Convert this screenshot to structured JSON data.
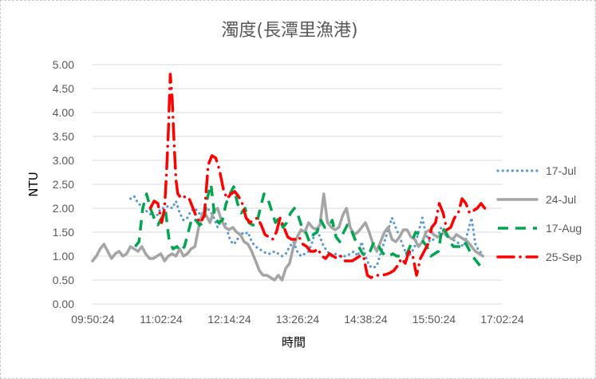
{
  "chart_data": {
    "type": "line",
    "title": "濁度(長潭里漁港)",
    "xlabel": "時間",
    "ylabel": "NTU",
    "xlim_minutes": [
      590,
      1022
    ],
    "ylim": [
      0,
      5
    ],
    "y_ticks": [
      0,
      0.5,
      1,
      1.5,
      2,
      2.5,
      3,
      3.5,
      4,
      4.5,
      5
    ],
    "y_tick_labels": [
      "0.00",
      "0.50",
      "1.00",
      "1.50",
      "2.00",
      "2.50",
      "3.00",
      "3.50",
      "4.00",
      "4.50",
      "5.00"
    ],
    "x_ticks": [
      590.4,
      662.4,
      734.4,
      806.4,
      878.4,
      950.4,
      1022.4
    ],
    "x_tick_labels": [
      "09:50:24",
      "11:02:24",
      "12:14:24",
      "13:26:24",
      "14:38:24",
      "15:50:24",
      "17:02:24"
    ],
    "grid": "horizontal",
    "legend_position": "right",
    "series": [
      {
        "name": "17-Jul",
        "color": "#5B9BD5",
        "style": "dotted",
        "x": [
          630,
          634,
          638,
          642,
          646,
          650,
          654,
          658,
          662,
          666,
          670,
          674,
          678,
          682,
          686,
          690,
          694,
          698,
          702,
          706,
          710,
          714,
          718,
          722,
          726,
          730,
          734,
          738,
          742,
          746,
          750,
          754,
          758,
          762,
          766,
          770,
          774,
          778,
          782,
          786,
          790,
          794,
          798,
          802,
          806,
          810,
          814,
          818,
          822,
          826,
          830,
          834,
          838,
          842,
          846,
          850,
          854,
          858,
          862,
          866,
          870,
          874,
          878,
          882,
          886,
          890,
          894,
          898,
          902,
          906,
          910,
          914,
          918,
          922,
          926,
          930,
          934,
          938,
          942,
          946,
          950,
          954,
          958,
          962,
          966,
          970,
          974,
          978,
          982,
          986,
          990,
          994,
          998,
          1002
        ],
        "values": [
          2.2,
          2.25,
          2.1,
          2.05,
          1.95,
          1.9,
          1.8,
          1.85,
          2.0,
          2.0,
          2.05,
          2.0,
          2.15,
          1.9,
          1.75,
          1.8,
          1.95,
          2.0,
          1.9,
          1.85,
          2.0,
          1.95,
          1.8,
          1.6,
          1.75,
          1.7,
          1.4,
          1.25,
          1.3,
          1.5,
          1.45,
          1.5,
          1.3,
          1.2,
          1.15,
          1.1,
          1.05,
          1.05,
          1.1,
          1.05,
          1.0,
          1.05,
          1.2,
          1.3,
          1.1,
          1.0,
          1.05,
          1.1,
          1.3,
          1.6,
          1.4,
          1.2,
          1.1,
          1.0,
          1.05,
          1.0,
          1.0,
          1.0,
          1.05,
          1.1,
          1.0,
          1.3,
          1.0,
          0.8,
          0.75,
          0.8,
          1.05,
          1.3,
          1.55,
          1.8,
          1.6,
          1.4,
          1.2,
          1.0,
          1.05,
          1.2,
          1.5,
          1.8,
          1.45,
          1.3,
          1.35,
          1.4,
          1.6,
          1.45,
          1.4,
          1.35,
          1.3,
          1.25,
          1.2,
          1.5,
          1.8,
          1.25,
          1.1,
          1.05
        ]
      },
      {
        "name": "24-Jul",
        "color": "#A5A5A5",
        "style": "solid",
        "x": [
          590,
          594,
          598,
          602,
          606,
          610,
          614,
          618,
          622,
          626,
          630,
          634,
          638,
          642,
          646,
          650,
          654,
          658,
          662,
          666,
          670,
          674,
          678,
          682,
          686,
          690,
          694,
          698,
          702,
          706,
          710,
          714,
          718,
          722,
          726,
          730,
          734,
          738,
          742,
          746,
          750,
          754,
          758,
          762,
          766,
          770,
          774,
          778,
          782,
          786,
          790,
          794,
          798,
          802,
          806,
          810,
          814,
          818,
          822,
          826,
          830,
          834,
          838,
          842,
          846,
          850,
          854,
          858,
          862,
          866,
          870,
          874,
          878,
          882,
          886,
          890,
          894,
          898,
          902,
          906,
          910,
          914,
          918,
          922,
          926,
          930,
          934,
          938,
          942,
          946,
          950,
          954,
          958,
          962,
          966,
          970,
          974,
          978,
          982,
          986,
          990,
          994,
          998,
          1002
        ],
        "values": [
          0.9,
          1.0,
          1.15,
          1.25,
          1.1,
          0.95,
          1.05,
          1.1,
          1.0,
          1.05,
          1.2,
          1.15,
          1.1,
          1.2,
          1.05,
          0.95,
          0.95,
          1.0,
          1.05,
          0.9,
          1.0,
          1.05,
          1.0,
          1.15,
          1.0,
          1.05,
          1.15,
          1.2,
          1.6,
          1.9,
          1.85,
          1.7,
          1.95,
          2.0,
          1.75,
          1.6,
          1.55,
          1.6,
          1.5,
          1.45,
          1.3,
          1.25,
          1.1,
          0.9,
          0.7,
          0.6,
          0.6,
          0.55,
          0.5,
          0.6,
          0.5,
          0.75,
          0.85,
          1.2,
          1.4,
          1.55,
          1.5,
          1.7,
          1.6,
          1.55,
          1.65,
          2.3,
          1.7,
          1.6,
          1.55,
          1.6,
          1.85,
          2.0,
          1.6,
          1.45,
          1.5,
          1.6,
          1.7,
          1.5,
          1.25,
          1.1,
          1.3,
          1.5,
          1.6,
          1.35,
          1.3,
          1.4,
          1.55,
          1.55,
          1.4,
          1.35,
          1.2,
          1.3,
          1.5,
          1.55,
          1.45,
          1.4,
          1.45,
          1.5,
          1.4,
          1.35,
          1.45,
          1.4,
          1.35,
          1.3,
          1.2,
          1.1,
          1.05,
          1.0
        ]
      },
      {
        "name": "17-Aug",
        "color": "#00A550",
        "style": "dashed",
        "x": [
          635,
          639,
          643,
          647,
          651,
          655,
          659,
          663,
          667,
          671,
          675,
          679,
          683,
          687,
          691,
          695,
          699,
          703,
          707,
          711,
          715,
          719,
          723,
          727,
          731,
          735,
          739,
          743,
          747,
          751,
          755,
          759,
          763,
          767,
          771,
          775,
          779,
          783,
          787,
          791,
          795,
          799,
          803,
          807,
          811,
          815,
          819,
          823,
          827,
          831,
          835,
          839,
          843,
          847,
          851,
          855,
          859,
          863,
          867,
          871,
          875,
          879,
          883,
          887,
          891,
          895,
          899,
          903,
          907,
          911,
          915,
          919,
          923,
          927,
          931,
          935,
          939,
          943,
          947,
          951,
          955,
          959,
          963,
          967,
          971,
          975,
          979,
          983,
          987,
          991,
          995,
          999,
          1003
        ],
        "values": [
          1.2,
          1.3,
          2.0,
          2.3,
          2.0,
          1.8,
          1.65,
          1.8,
          1.95,
          1.3,
          1.15,
          1.2,
          1.1,
          1.2,
          1.5,
          1.8,
          1.75,
          1.65,
          1.7,
          2.2,
          2.5,
          1.8,
          1.7,
          1.75,
          2.1,
          2.3,
          2.45,
          2.1,
          1.9,
          2.0,
          1.7,
          1.65,
          1.65,
          2.0,
          2.3,
          2.2,
          1.95,
          1.7,
          1.8,
          1.6,
          1.7,
          1.9,
          2.0,
          1.85,
          1.6,
          1.5,
          1.3,
          1.45,
          1.5,
          1.75,
          1.6,
          1.6,
          1.75,
          1.4,
          1.3,
          1.5,
          1.65,
          1.55,
          1.35,
          1.2,
          1.05,
          1.0,
          1.1,
          1.3,
          1.25,
          1.1,
          1.0,
          1.0,
          1.05,
          1.0,
          1.0,
          1.0,
          1.1,
          1.3,
          1.5,
          1.45,
          1.3,
          1.2,
          1.0,
          1.05,
          1.1,
          1.6,
          1.5,
          1.3,
          1.2,
          1.2,
          1.2,
          1.3,
          1.15,
          1.0,
          0.9,
          0.8,
          0.8
        ]
      },
      {
        "name": "25-Sep",
        "color": "#FF0000",
        "style": "dash-dot",
        "x": [
          651,
          655,
          659,
          663,
          666,
          668,
          670,
          672,
          674,
          676,
          678,
          680,
          684,
          688,
          692,
          696,
          700,
          704,
          708,
          712,
          716,
          720,
          724,
          728,
          732,
          736,
          740,
          744,
          748,
          752,
          756,
          760,
          764,
          768,
          772,
          776,
          780,
          784,
          788,
          792,
          796,
          800,
          804,
          808,
          812,
          816,
          820,
          824,
          828,
          832,
          836,
          840,
          844,
          848,
          852,
          856,
          860,
          864,
          868,
          872,
          876,
          880,
          884,
          888,
          892,
          896,
          900,
          904,
          908,
          912,
          916,
          920,
          924,
          928,
          932,
          936,
          940,
          944,
          948,
          952,
          956,
          960,
          964,
          968,
          972,
          976,
          980,
          984,
          988,
          992,
          996,
          1000,
          1004,
          1008
        ],
        "values": [
          2.0,
          2.15,
          2.1,
          1.7,
          2.0,
          2.7,
          3.6,
          4.8,
          4.3,
          3.4,
          2.6,
          2.3,
          2.2,
          2.25,
          2.2,
          2.0,
          1.8,
          1.7,
          1.85,
          2.9,
          3.1,
          3.05,
          2.8,
          2.4,
          2.2,
          2.3,
          2.35,
          2.25,
          2.1,
          1.8,
          1.7,
          1.75,
          1.8,
          1.65,
          1.45,
          1.4,
          1.35,
          1.5,
          1.8,
          1.6,
          1.4,
          1.35,
          1.35,
          1.4,
          1.25,
          1.2,
          1.1,
          1.1,
          1.15,
          1.0,
          0.95,
          1.05,
          1.0,
          0.95,
          1.0,
          0.9,
          0.9,
          0.9,
          0.95,
          1.0,
          1.0,
          0.6,
          0.55,
          0.6,
          0.6,
          0.6,
          0.62,
          0.65,
          0.7,
          0.8,
          0.95,
          0.85,
          1.1,
          1.0,
          0.6,
          0.95,
          1.1,
          1.25,
          1.6,
          1.7,
          2.1,
          1.9,
          1.55,
          1.6,
          1.8,
          1.9,
          2.2,
          2.1,
          1.9,
          1.95,
          2.0,
          2.1,
          2.0,
          2.0
        ]
      }
    ]
  }
}
